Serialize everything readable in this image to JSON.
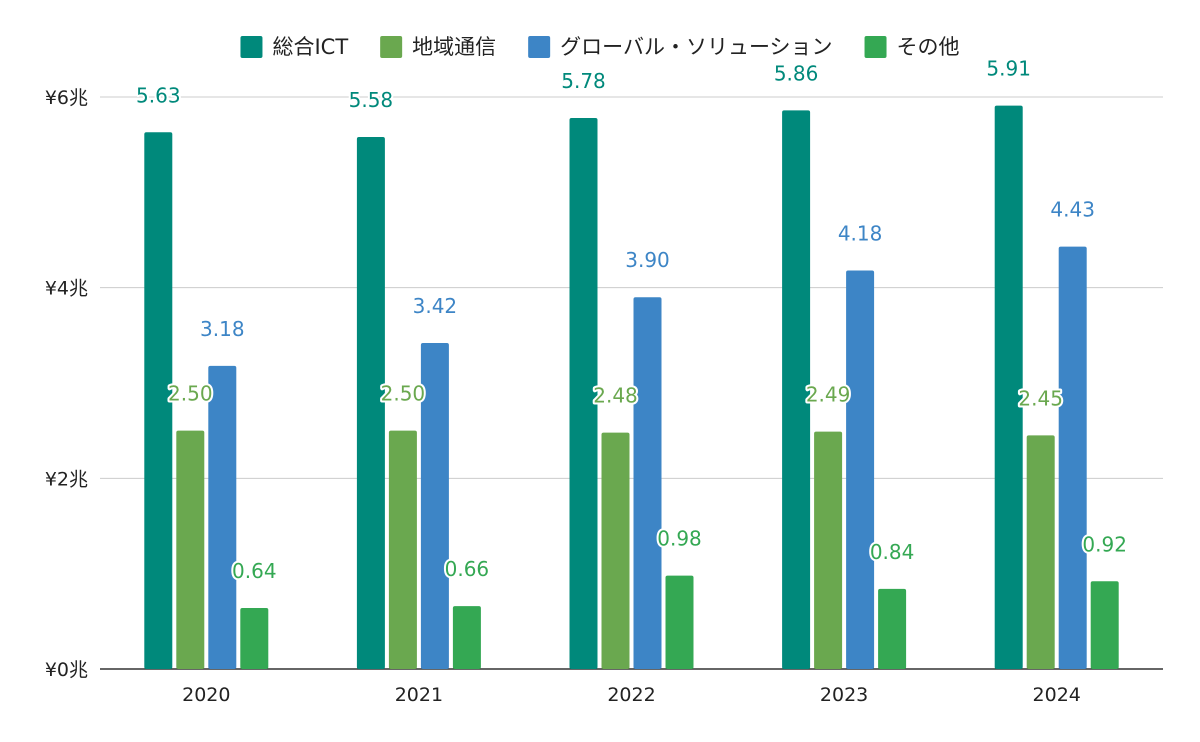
{
  "chart_data": {
    "type": "bar",
    "categories": [
      "2020",
      "2021",
      "2022",
      "2023",
      "2024"
    ],
    "series": [
      {
        "name": "総合ICT",
        "color": "#00897b",
        "label_color": "#00897b",
        "values": [
          5.63,
          5.58,
          5.78,
          5.86,
          5.91
        ]
      },
      {
        "name": "地域通信",
        "color": "#6aa84f",
        "label_color": "#6aa84f",
        "values": [
          2.5,
          2.5,
          2.48,
          2.49,
          2.45
        ]
      },
      {
        "name": "グローバル・ソリューション",
        "color": "#3d85c6",
        "label_color": "#3d85c6",
        "values": [
          3.18,
          3.42,
          3.9,
          4.18,
          4.43
        ]
      },
      {
        "name": "その他",
        "color": "#34a853",
        "label_color": "#34a853",
        "values": [
          0.64,
          0.66,
          0.98,
          0.84,
          0.92
        ]
      }
    ],
    "value_labels": [
      [
        "5.63",
        "5.58",
        "5.78",
        "5.86",
        "5.91"
      ],
      [
        "2.50",
        "2.50",
        "2.48",
        "2.49",
        "2.45"
      ],
      [
        "3.18",
        "3.42",
        "3.90",
        "4.18",
        "4.43"
      ],
      [
        "0.64",
        "0.66",
        "0.98",
        "0.84",
        "0.92"
      ]
    ],
    "y_ticks": [
      {
        "value": 0,
        "label": "¥0兆"
      },
      {
        "value": 2,
        "label": "¥2兆"
      },
      {
        "value": 4,
        "label": "¥4兆"
      },
      {
        "value": 6,
        "label": "¥6兆"
      }
    ],
    "ylim": [
      0,
      6
    ],
    "title": "",
    "xlabel": "",
    "ylabel": "",
    "grid": true,
    "legend_position": "top-center"
  }
}
